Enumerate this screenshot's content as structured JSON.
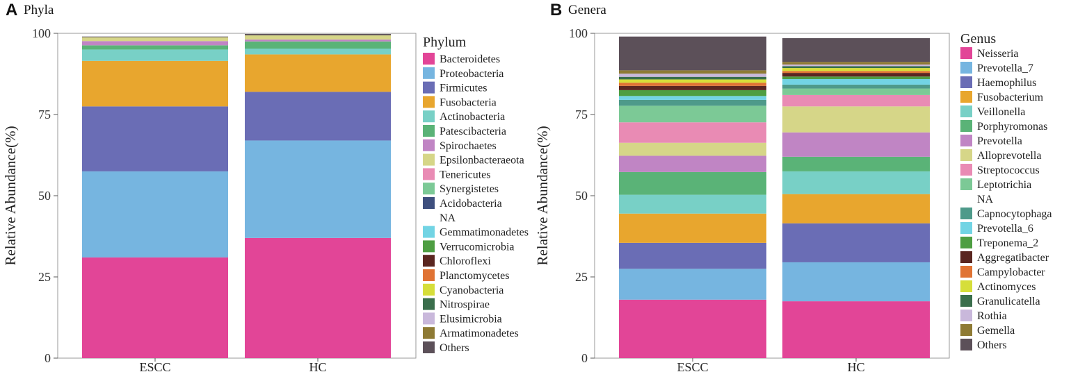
{
  "chart_data": [
    {
      "type": "bar",
      "stacked": true,
      "panel_label": "A",
      "title": "Phyla",
      "xlabel": "",
      "ylabel": "Relative Abundance(%)",
      "ylim": [
        0,
        100
      ],
      "yticks": [
        0,
        25,
        50,
        75,
        100
      ],
      "categories": [
        "ESCC",
        "HC"
      ],
      "legend_title": "Phylum",
      "legend_position": "right",
      "series": [
        {
          "name": "Bacteroidetes",
          "color": "#E24597",
          "values": [
            31.0,
            37.0
          ]
        },
        {
          "name": "Proteobacteria",
          "color": "#76B5E0",
          "values": [
            26.5,
            30.0
          ]
        },
        {
          "name": "Firmicutes",
          "color": "#6A6DB5",
          "values": [
            20.0,
            15.0
          ]
        },
        {
          "name": "Fusobacteria",
          "color": "#E8A62E",
          "values": [
            14.0,
            11.5
          ]
        },
        {
          "name": "Actinobacteria",
          "color": "#78D0C6",
          "values": [
            3.5,
            1.8
          ]
        },
        {
          "name": "Patescibacteria",
          "color": "#5AB377",
          "values": [
            1.3,
            2.2
          ]
        },
        {
          "name": "Spirochaetes",
          "color": "#C085C4",
          "values": [
            1.3,
            0.6
          ]
        },
        {
          "name": "Epsilonbacteraeota",
          "color": "#D6D688",
          "values": [
            1.2,
            1.3
          ]
        },
        {
          "name": "Tenericutes",
          "color": "#E98BB4",
          "values": [
            0.0,
            0.0
          ]
        },
        {
          "name": "Synergistetes",
          "color": "#7CC996",
          "values": [
            0.0,
            0.0
          ]
        },
        {
          "name": "Acidobacteria",
          "color": "#3E4F7E",
          "values": [
            0.0,
            0.0
          ]
        },
        {
          "name": "NA",
          "color": "none",
          "values": [
            0.0,
            0.0
          ]
        },
        {
          "name": "Gemmatimonadetes",
          "color": "#72D4E4",
          "values": [
            0.0,
            0.0
          ]
        },
        {
          "name": "Verrucomicrobia",
          "color": "#4E9E42",
          "values": [
            0.0,
            0.0
          ]
        },
        {
          "name": "Chloroflexi",
          "color": "#5A2620",
          "values": [
            0.0,
            0.0
          ]
        },
        {
          "name": "Planctomycetes",
          "color": "#E07334",
          "values": [
            0.0,
            0.0
          ]
        },
        {
          "name": "Cyanobacteria",
          "color": "#D6DE3A",
          "values": [
            0.0,
            0.0
          ]
        },
        {
          "name": "Nitrospirae",
          "color": "#3A6E4C",
          "values": [
            0.0,
            0.0
          ]
        },
        {
          "name": "Elusimicrobia",
          "color": "#C9B8DB",
          "values": [
            0.0,
            0.0
          ]
        },
        {
          "name": "Armatimonadetes",
          "color": "#8E7A34",
          "values": [
            0.0,
            0.0
          ]
        },
        {
          "name": "Others",
          "color": "#5C5059",
          "values": [
            0.2,
            0.4
          ]
        }
      ]
    },
    {
      "type": "bar",
      "stacked": true,
      "panel_label": "B",
      "title": "Genera",
      "xlabel": "",
      "ylabel": "Relative Abundance(%)",
      "ylim": [
        0,
        100
      ],
      "yticks": [
        0,
        25,
        50,
        75,
        100
      ],
      "categories": [
        "ESCC",
        "HC"
      ],
      "legend_title": "Genus",
      "legend_position": "right",
      "series": [
        {
          "name": "Neisseria",
          "color": "#E24597",
          "values": [
            18.0,
            17.5
          ]
        },
        {
          "name": "Prevotella_7",
          "color": "#76B5E0",
          "values": [
            9.5,
            12.0
          ]
        },
        {
          "name": "Haemophilus",
          "color": "#6A6DB5",
          "values": [
            8.0,
            12.0
          ]
        },
        {
          "name": "Fusobacterium",
          "color": "#E8A62E",
          "values": [
            9.0,
            9.0
          ]
        },
        {
          "name": "Veillonella",
          "color": "#78D0C6",
          "values": [
            5.8,
            7.0
          ]
        },
        {
          "name": "Porphyromonas",
          "color": "#5AB377",
          "values": [
            7.0,
            4.5
          ]
        },
        {
          "name": "Prevotella",
          "color": "#C085C4",
          "values": [
            5.0,
            7.5
          ]
        },
        {
          "name": "Alloprevotella",
          "color": "#D6D688",
          "values": [
            4.0,
            8.0
          ]
        },
        {
          "name": "Streptococcus",
          "color": "#E98BB4",
          "values": [
            6.3,
            3.5
          ]
        },
        {
          "name": "Leptotrichia",
          "color": "#7CC996",
          "values": [
            5.1,
            2.0
          ]
        },
        {
          "name": "NA",
          "color": "none",
          "values": [
            0.0,
            0.0
          ]
        },
        {
          "name": "Capnocytophaga",
          "color": "#4E9A8A",
          "values": [
            1.8,
            1.2
          ]
        },
        {
          "name": "Prevotella_6",
          "color": "#72D4E4",
          "values": [
            1.2,
            1.7
          ]
        },
        {
          "name": "Treponema_2",
          "color": "#4E9E42",
          "values": [
            1.8,
            0.8
          ]
        },
        {
          "name": "Aggregatibacter",
          "color": "#5A2620",
          "values": [
            1.3,
            1.1
          ]
        },
        {
          "name": "Campylobacter",
          "color": "#E07334",
          "values": [
            1.0,
            0.6
          ]
        },
        {
          "name": "Actinomyces",
          "color": "#D6DE3A",
          "values": [
            1.0,
            0.9
          ]
        },
        {
          "name": "Granulicatella",
          "color": "#3A6E4C",
          "values": [
            0.8,
            0.6
          ]
        },
        {
          "name": "Rothia",
          "color": "#C9B8DB",
          "values": [
            1.0,
            0.5
          ]
        },
        {
          "name": "Gemella",
          "color": "#8E7A34",
          "values": [
            1.0,
            0.8
          ]
        },
        {
          "name": "Others",
          "color": "#5C5059",
          "values": [
            10.4,
            7.3
          ]
        }
      ]
    }
  ]
}
